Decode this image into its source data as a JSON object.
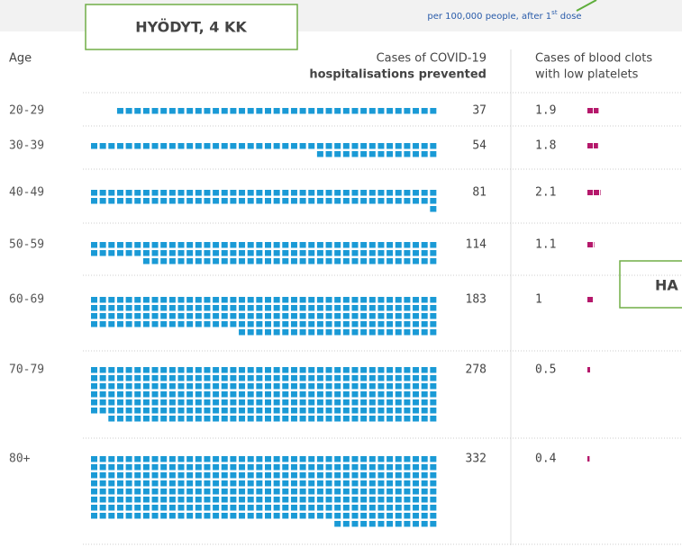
{
  "chart_data": {
    "type": "waffle",
    "note": "per 100,000 people, after 1",
    "note_sup": "st",
    "note_end": " dose",
    "category_label": "Age",
    "categories": [
      "20-29",
      "30-39",
      "40-49",
      "50-59",
      "60-69",
      "70-79",
      "80+"
    ],
    "series": [
      {
        "name": "Cases of COVID-19",
        "name_bold": "hospitalisations prevented",
        "color": "#1a9ad6",
        "values": [
          37,
          54,
          81,
          114,
          183,
          278,
          332
        ]
      },
      {
        "name": "Cases of blood clots",
        "name_line2": "with low platelets",
        "color": "#b5186b",
        "values": [
          1.9,
          1.8,
          2.1,
          1.1,
          1,
          0.5,
          0.4
        ]
      }
    ],
    "annotations": [
      "HYÖDYT, 4 KK",
      "HA"
    ]
  }
}
